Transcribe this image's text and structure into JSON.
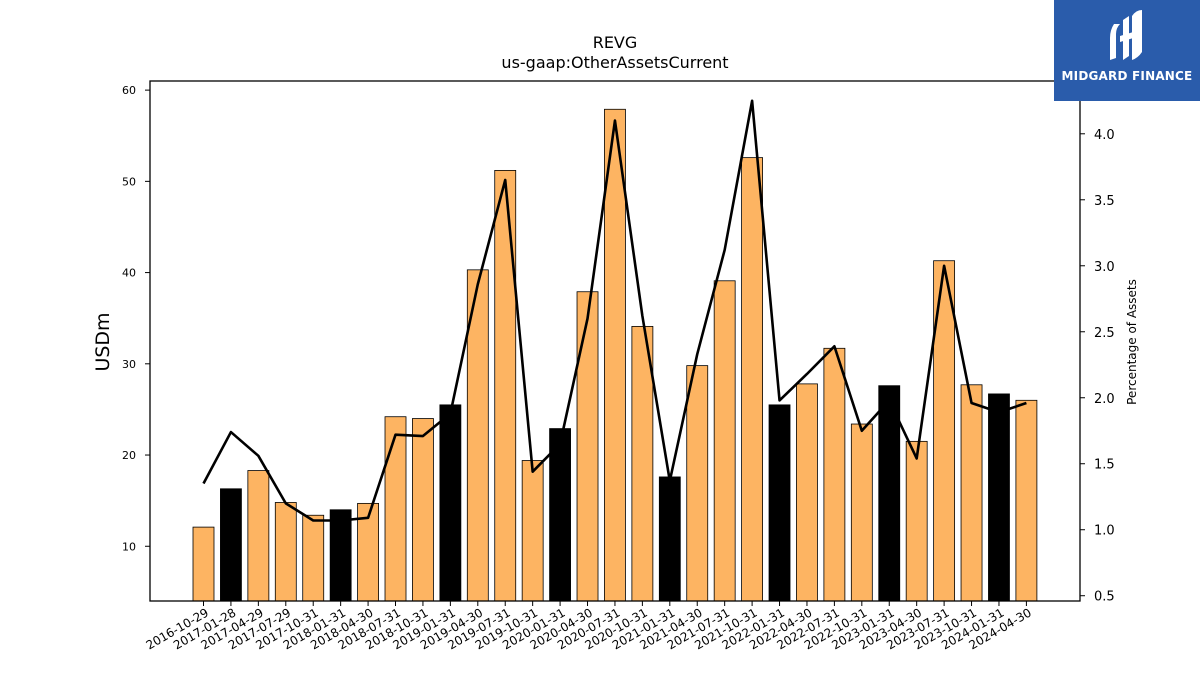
{
  "brand": {
    "name": "MIDGARD FINANCE",
    "color": "#2a5cab"
  },
  "chart_data": {
    "type": "bar",
    "title": "REVG",
    "subtitle": "us-gaap:OtherAssetsCurrent",
    "ylabel": "USDm",
    "y2label": "Percentage of Assets",
    "ylim": [
      4,
      61
    ],
    "y2lim": [
      0.46,
      4.4
    ],
    "yticks": [
      10,
      20,
      30,
      40,
      50,
      60
    ],
    "y2ticks": [
      0.5,
      1.0,
      1.5,
      2.0,
      2.5,
      3.0,
      3.5,
      4.0
    ],
    "categories": [
      "2016-10-29",
      "2017-01-28",
      "2017-04-29",
      "2017-07-29",
      "2017-10-31",
      "2018-01-31",
      "2018-04-30",
      "2018-07-31",
      "2018-10-31",
      "2019-01-31",
      "2019-04-30",
      "2019-07-31",
      "2019-10-31",
      "2020-01-31",
      "2020-04-30",
      "2020-07-31",
      "2020-10-31",
      "2021-01-31",
      "2021-04-30",
      "2021-07-31",
      "2021-10-31",
      "2022-01-31",
      "2022-04-30",
      "2022-07-31",
      "2022-10-31",
      "2023-01-31",
      "2023-04-30",
      "2023-07-31",
      "2023-10-31",
      "2024-01-31",
      "2024-04-30"
    ],
    "series": [
      {
        "type": "bar",
        "axis": "left",
        "values": [
          12.1,
          16.3,
          18.3,
          14.8,
          13.4,
          14.0,
          14.7,
          24.2,
          24.0,
          25.5,
          40.3,
          51.2,
          19.4,
          22.9,
          37.9,
          57.9,
          34.1,
          17.6,
          29.8,
          39.1,
          52.6,
          25.5,
          27.8,
          31.7,
          23.4,
          27.6,
          21.5,
          41.3,
          27.7,
          26.7,
          26.0
        ],
        "highlight": [
          false,
          true,
          false,
          false,
          false,
          true,
          false,
          false,
          false,
          true,
          false,
          false,
          false,
          true,
          false,
          false,
          false,
          true,
          false,
          false,
          false,
          true,
          false,
          false,
          false,
          true,
          false,
          false,
          false,
          true,
          false
        ]
      },
      {
        "type": "line",
        "axis": "right",
        "values": [
          1.35,
          1.74,
          1.56,
          1.2,
          1.07,
          1.07,
          1.09,
          1.72,
          1.71,
          1.88,
          2.86,
          3.65,
          1.44,
          1.65,
          2.6,
          4.1,
          2.62,
          1.37,
          2.33,
          3.12,
          4.25,
          1.98,
          2.18,
          2.39,
          1.75,
          1.98,
          1.54,
          3.0,
          1.96,
          1.89,
          1.96
        ]
      }
    ],
    "colors": {
      "bar": "#fdb462",
      "bar_highlight": "#000000",
      "line": "#000000"
    },
    "grid": false,
    "legend": "none"
  }
}
